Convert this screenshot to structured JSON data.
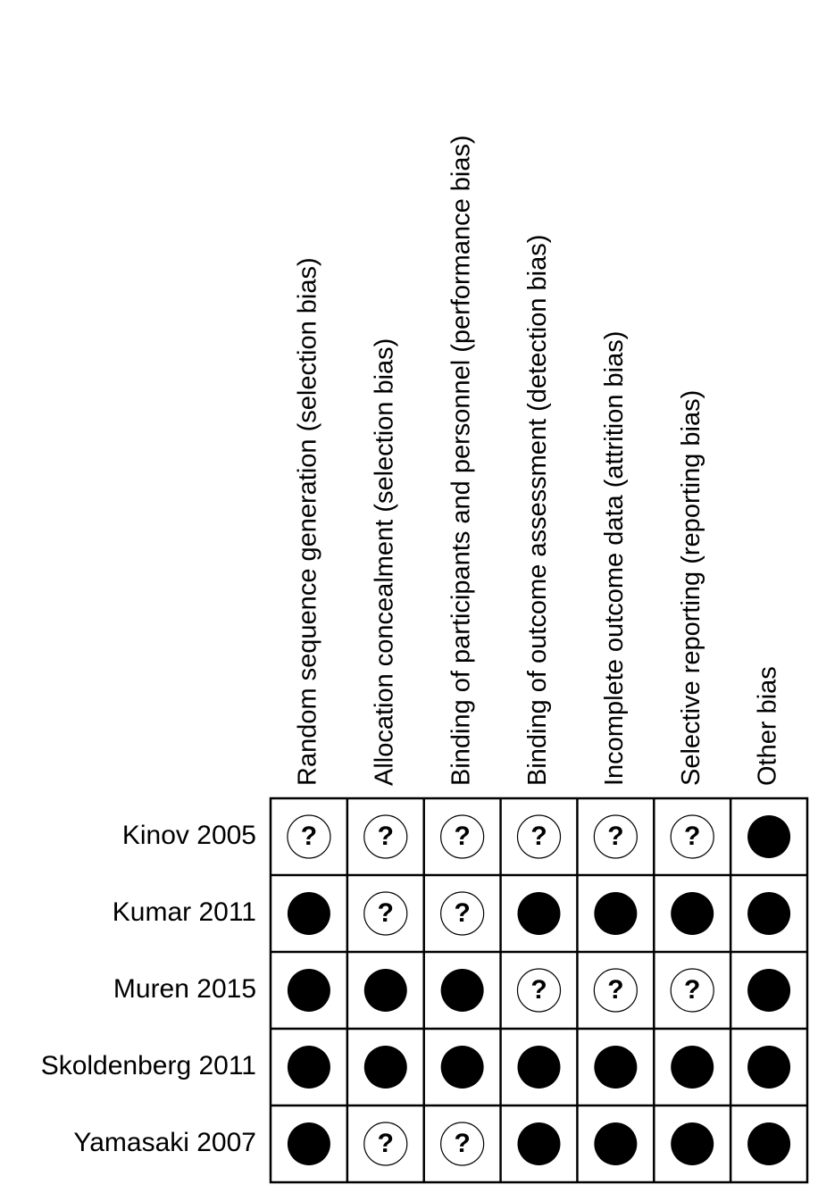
{
  "chart_data": {
    "type": "table",
    "columns": [
      "Random sequence generation (selection bias)",
      "Allocation concealment (selection bias)",
      "Binding of participants and personnel (performance bias)",
      "Binding of outcome assessment (detection bias)",
      "Incomplete outcome data (attrition bias)",
      "Selective reporting (reporting bias)",
      "Other bias"
    ],
    "rows": [
      "Kinov 2005",
      "Kumar 2011",
      "Muren 2015",
      "Skoldenberg 2011",
      "Yamasaki 2007"
    ],
    "values": [
      [
        "unclear",
        "unclear",
        "unclear",
        "unclear",
        "unclear",
        "unclear",
        "filled"
      ],
      [
        "filled",
        "unclear",
        "unclear",
        "filled",
        "filled",
        "filled",
        "filled"
      ],
      [
        "filled",
        "filled",
        "filled",
        "unclear",
        "unclear",
        "unclear",
        "filled"
      ],
      [
        "filled",
        "filled",
        "filled",
        "filled",
        "filled",
        "filled",
        "filled"
      ],
      [
        "filled",
        "unclear",
        "unclear",
        "filled",
        "filled",
        "filled",
        "filled"
      ]
    ],
    "symbols": {
      "unclear": "?",
      "filled": ""
    },
    "colors": {
      "filled": "#000000",
      "unclear_fill": "#ffffff",
      "grid": "#000000"
    }
  }
}
